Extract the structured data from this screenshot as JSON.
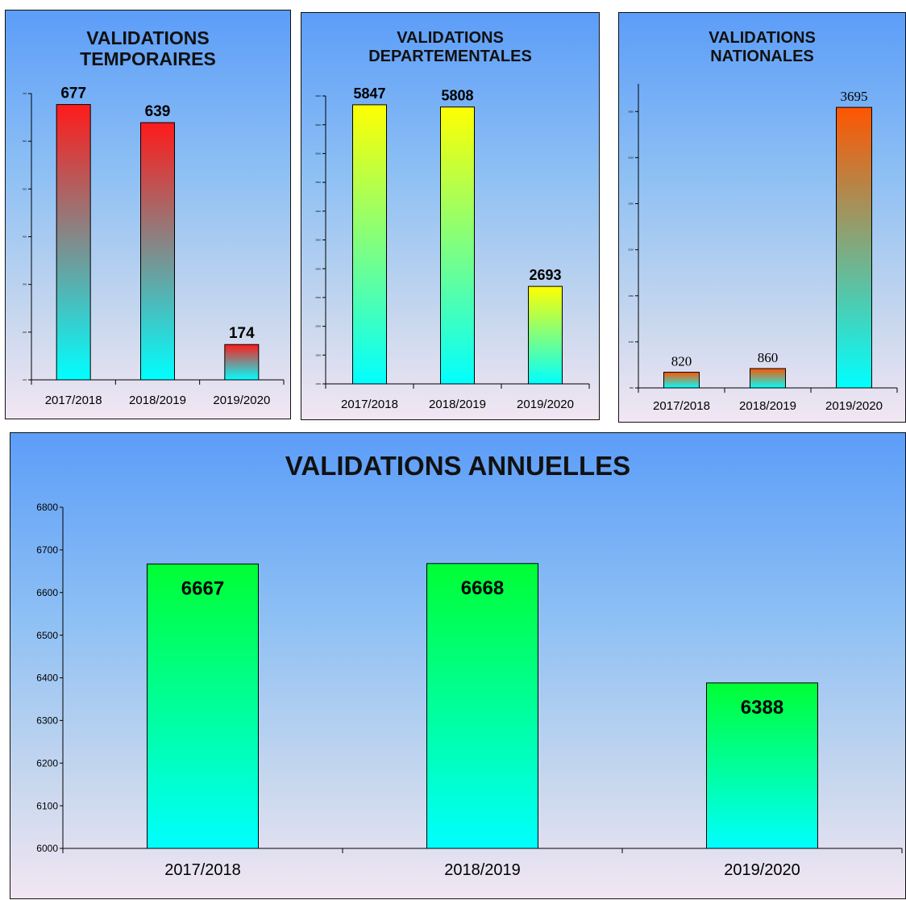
{
  "chart_data": [
    {
      "id": "temporaires",
      "type": "bar",
      "title": "VALIDATIONS\nTEMPORAIRES",
      "categories": [
        "2017/2018",
        "2018/2019",
        "2019/2020"
      ],
      "values": [
        677,
        639,
        174
      ],
      "ylim": [
        100,
        700
      ],
      "yticks": [
        100,
        200,
        300,
        400,
        500,
        600,
        700
      ],
      "ytick_labels_legible": false,
      "colors": {
        "top": "#ff1a1a",
        "bottom": "#00ffff"
      },
      "grid": false,
      "legend": "none"
    },
    {
      "id": "departementales",
      "type": "bar",
      "title": "VALIDATIONS\nDEPARTEMENTALES",
      "categories": [
        "2017/2018",
        "2018/2019",
        "2019/2020"
      ],
      "values": [
        5847,
        5808,
        2693
      ],
      "ylim": [
        1000,
        6000
      ],
      "yticks": [
        1000,
        1500,
        2000,
        2500,
        3000,
        3500,
        4000,
        4500,
        5000,
        5500,
        6000
      ],
      "ytick_labels_legible": false,
      "colors": {
        "top": "#ffff00",
        "bottom": "#00ffff"
      },
      "grid": false,
      "legend": "none"
    },
    {
      "id": "nationales",
      "type": "bar",
      "title": "VALIDATIONS\nNATIONALES",
      "categories": [
        "2017/2018",
        "2018/2019",
        "2019/2020"
      ],
      "values": [
        820,
        860,
        3695
      ],
      "ylim": [
        650,
        3950
      ],
      "yticks": [
        650,
        1150,
        1650,
        2150,
        2650,
        3150,
        3650
      ],
      "ytick_labels_legible": false,
      "colors": {
        "top": "#ff5500",
        "bottom": "#00ffff"
      },
      "grid": false,
      "legend": "none"
    },
    {
      "id": "annuelles",
      "type": "bar",
      "title": "VALIDATIONS ANNUELLES",
      "categories": [
        "2017/2018",
        "2018/2019",
        "2019/2020"
      ],
      "values": [
        6667,
        6668,
        6388
      ],
      "ylim": [
        6000,
        6800
      ],
      "yticks": [
        6000,
        6100,
        6200,
        6300,
        6400,
        6500,
        6600,
        6700,
        6800
      ],
      "ytick_labels_legible": true,
      "colors": {
        "top": "#00ff33",
        "bottom": "#00ffff"
      },
      "grid": false,
      "legend": "none"
    }
  ]
}
